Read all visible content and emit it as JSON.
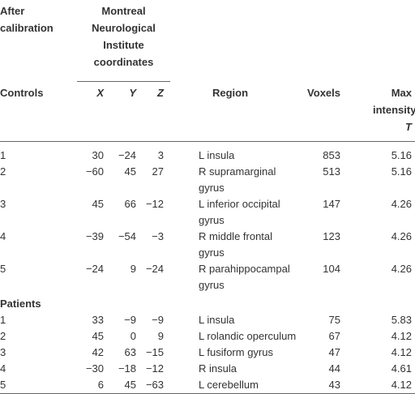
{
  "header": {
    "title": "After calibration",
    "mni": "Montreal Neurological Institute coordinates"
  },
  "columns": [
    "Controls",
    "X",
    "Y",
    "Z",
    "Region",
    "Voxels",
    {
      "text": "Max intensity",
      "symbol": "T"
    }
  ],
  "controls": [
    [
      "1",
      "30",
      "−24",
      "3",
      "L insula",
      "853",
      "5.16"
    ],
    [
      "2",
      "−60",
      "45",
      "27",
      "R supramarginal gyrus",
      "513",
      "5.16"
    ],
    [
      "3",
      "45",
      "66",
      "−12",
      "L inferior occipital gyrus",
      "147",
      "4.26"
    ],
    [
      "4",
      "−39",
      "−54",
      "−3",
      "R middle frontal gyrus",
      "123",
      "4.26"
    ],
    [
      "5",
      "−24",
      "9",
      "−24",
      "R parahippocampal gyrus",
      "104",
      "4.26"
    ]
  ],
  "patients_label": "Patients",
  "patients": [
    [
      "1",
      "33",
      "−9",
      "−9",
      "L insula",
      "75",
      "5.83"
    ],
    [
      "2",
      "45",
      "0",
      "9",
      "L rolandic operculum",
      "67",
      "4.12"
    ],
    [
      "3",
      "42",
      "63",
      "−15",
      "L fusiform gyrus",
      "47",
      "4.12"
    ],
    [
      "4",
      "−30",
      "−18",
      "−12",
      "R insula",
      "44",
      "4.61"
    ],
    [
      "5",
      "6",
      "45",
      "−63",
      "L cerebellum",
      "43",
      "4.12"
    ]
  ]
}
